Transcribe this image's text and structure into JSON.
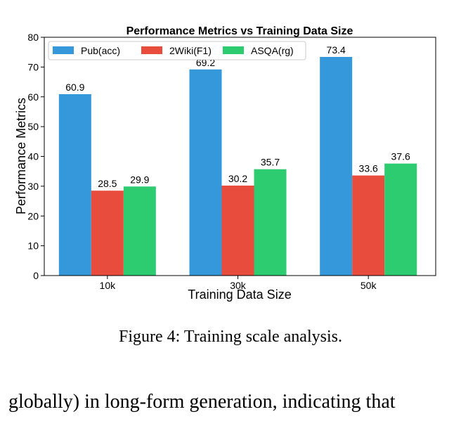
{
  "chart_data": {
    "type": "bar",
    "title": "Performance Metrics vs Training Data Size",
    "xlabel": "Training Data Size",
    "ylabel": "Performance Metrics",
    "categories": [
      "10k",
      "30k",
      "50k"
    ],
    "ylim": [
      0,
      80
    ],
    "yticks": [
      0,
      10,
      20,
      30,
      40,
      50,
      60,
      70,
      80
    ],
    "legend_position": "top-left",
    "grid": false,
    "series": [
      {
        "name": "Pub(acc)",
        "color": "#3498db",
        "values": [
          60.9,
          69.2,
          73.4
        ],
        "labels": [
          "60.9",
          "69.2",
          "73.4"
        ]
      },
      {
        "name": "2Wiki(F1)",
        "color": "#e74c3c",
        "values": [
          28.5,
          30.2,
          33.6
        ],
        "labels": [
          "28.5",
          "30.2",
          "33.6"
        ]
      },
      {
        "name": "ASQA(rg)",
        "color": "#2ecc71",
        "values": [
          29.9,
          35.7,
          37.6
        ],
        "labels": [
          "29.9",
          "35.7",
          "37.6"
        ]
      }
    ]
  },
  "caption": "Figure 4: Training scale analysis.",
  "body_text": "globally) in long-form generation, indicating that"
}
